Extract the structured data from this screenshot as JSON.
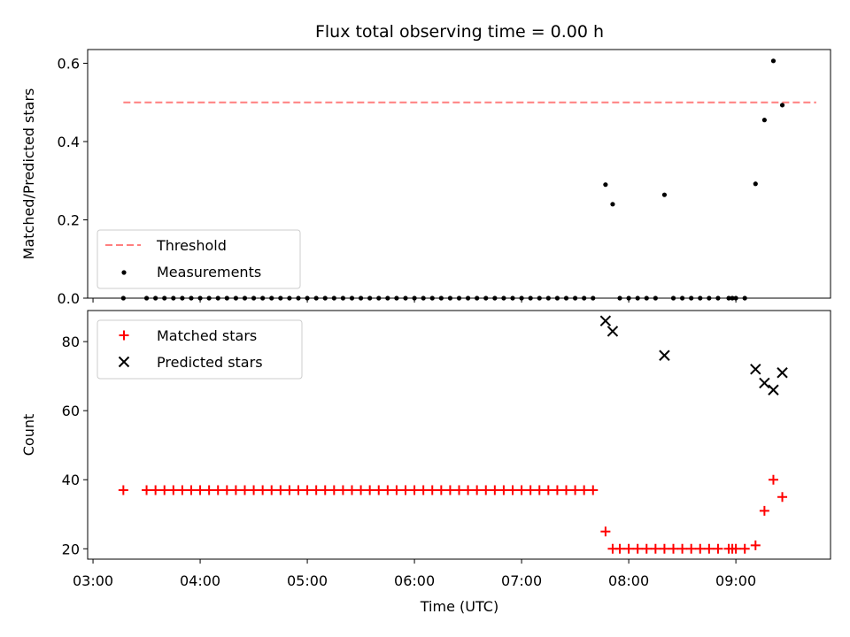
{
  "chart_data": {
    "type": "scatter",
    "title": "Flux total observing time = 0.00 h",
    "xlabel": "Time (UTC)",
    "x_ticks": [
      "03:00",
      "04:00",
      "05:00",
      "06:00",
      "07:00",
      "08:00",
      "09:00"
    ],
    "xlim": [
      "02:57",
      "09:53"
    ],
    "panels": [
      {
        "ylabel": "Matched/Predicted stars",
        "ylim": [
          0,
          0.635
        ],
        "y_ticks": [
          "0.0",
          "0.2",
          "0.4",
          "0.6"
        ],
        "legend": "lower-left",
        "series": [
          {
            "name": "Threshold",
            "style": "dashed-line",
            "color": "#ff7f7f",
            "points": [
              [
                "03:17",
                0.5
              ],
              [
                "09:45",
                0.5
              ]
            ]
          },
          {
            "name": "Measurements",
            "style": "dot",
            "color": "#000000",
            "points": [
              [
                "03:17",
                0
              ],
              [
                "03:30",
                0
              ],
              [
                "03:35",
                0
              ],
              [
                "03:40",
                0
              ],
              [
                "03:45",
                0
              ],
              [
                "03:50",
                0
              ],
              [
                "03:55",
                0
              ],
              [
                "04:00",
                0
              ],
              [
                "04:05",
                0
              ],
              [
                "04:10",
                0
              ],
              [
                "04:15",
                0
              ],
              [
                "04:20",
                0
              ],
              [
                "04:25",
                0
              ],
              [
                "04:30",
                0
              ],
              [
                "04:35",
                0
              ],
              [
                "04:40",
                0
              ],
              [
                "04:45",
                0
              ],
              [
                "04:50",
                0
              ],
              [
                "04:55",
                0
              ],
              [
                "05:00",
                0
              ],
              [
                "05:05",
                0
              ],
              [
                "05:10",
                0
              ],
              [
                "05:15",
                0
              ],
              [
                "05:20",
                0
              ],
              [
                "05:25",
                0
              ],
              [
                "05:30",
                0
              ],
              [
                "05:35",
                0
              ],
              [
                "05:40",
                0
              ],
              [
                "05:45",
                0
              ],
              [
                "05:50",
                0
              ],
              [
                "05:55",
                0
              ],
              [
                "06:00",
                0
              ],
              [
                "06:05",
                0
              ],
              [
                "06:10",
                0
              ],
              [
                "06:15",
                0
              ],
              [
                "06:20",
                0
              ],
              [
                "06:25",
                0
              ],
              [
                "06:30",
                0
              ],
              [
                "06:35",
                0
              ],
              [
                "06:40",
                0
              ],
              [
                "06:45",
                0
              ],
              [
                "06:50",
                0
              ],
              [
                "06:55",
                0
              ],
              [
                "07:00",
                0
              ],
              [
                "07:05",
                0
              ],
              [
                "07:10",
                0
              ],
              [
                "07:15",
                0
              ],
              [
                "07:20",
                0
              ],
              [
                "07:25",
                0
              ],
              [
                "07:30",
                0
              ],
              [
                "07:35",
                0
              ],
              [
                "07:40",
                0
              ],
              [
                "07:47",
                0.29
              ],
              [
                "07:51",
                0.24
              ],
              [
                "07:55",
                0
              ],
              [
                "08:00",
                0
              ],
              [
                "08:05",
                0
              ],
              [
                "08:10",
                0
              ],
              [
                "08:15",
                0
              ],
              [
                "08:20",
                0.264
              ],
              [
                "08:25",
                0
              ],
              [
                "08:30",
                0
              ],
              [
                "08:35",
                0
              ],
              [
                "08:40",
                0
              ],
              [
                "08:45",
                0
              ],
              [
                "08:50",
                0
              ],
              [
                "08:56",
                0
              ],
              [
                "08:58",
                0
              ],
              [
                "09:00",
                0
              ],
              [
                "09:05",
                0
              ],
              [
                "09:11",
                0.292
              ],
              [
                "09:16",
                0.455
              ],
              [
                "09:21",
                0.606
              ],
              [
                "09:26",
                0.493
              ]
            ]
          }
        ]
      },
      {
        "ylabel": "Count",
        "ylim": [
          17,
          89
        ],
        "y_ticks": [
          "20",
          "40",
          "60",
          "80"
        ],
        "legend": "top-left",
        "series": [
          {
            "name": "Matched stars",
            "style": "plus",
            "color": "#ff0000",
            "points": [
              [
                "03:17",
                37
              ],
              [
                "03:30",
                37
              ],
              [
                "03:35",
                37
              ],
              [
                "03:40",
                37
              ],
              [
                "03:45",
                37
              ],
              [
                "03:50",
                37
              ],
              [
                "03:55",
                37
              ],
              [
                "04:00",
                37
              ],
              [
                "04:05",
                37
              ],
              [
                "04:10",
                37
              ],
              [
                "04:15",
                37
              ],
              [
                "04:20",
                37
              ],
              [
                "04:25",
                37
              ],
              [
                "04:30",
                37
              ],
              [
                "04:35",
                37
              ],
              [
                "04:40",
                37
              ],
              [
                "04:45",
                37
              ],
              [
                "04:50",
                37
              ],
              [
                "04:55",
                37
              ],
              [
                "05:00",
                37
              ],
              [
                "05:05",
                37
              ],
              [
                "05:10",
                37
              ],
              [
                "05:15",
                37
              ],
              [
                "05:20",
                37
              ],
              [
                "05:25",
                37
              ],
              [
                "05:30",
                37
              ],
              [
                "05:35",
                37
              ],
              [
                "05:40",
                37
              ],
              [
                "05:45",
                37
              ],
              [
                "05:50",
                37
              ],
              [
                "05:55",
                37
              ],
              [
                "06:00",
                37
              ],
              [
                "06:05",
                37
              ],
              [
                "06:10",
                37
              ],
              [
                "06:15",
                37
              ],
              [
                "06:20",
                37
              ],
              [
                "06:25",
                37
              ],
              [
                "06:30",
                37
              ],
              [
                "06:35",
                37
              ],
              [
                "06:40",
                37
              ],
              [
                "06:45",
                37
              ],
              [
                "06:50",
                37
              ],
              [
                "06:55",
                37
              ],
              [
                "07:00",
                37
              ],
              [
                "07:05",
                37
              ],
              [
                "07:10",
                37
              ],
              [
                "07:15",
                37
              ],
              [
                "07:20",
                37
              ],
              [
                "07:25",
                37
              ],
              [
                "07:30",
                37
              ],
              [
                "07:35",
                37
              ],
              [
                "07:40",
                37
              ],
              [
                "07:47",
                25
              ],
              [
                "07:51",
                20
              ],
              [
                "07:55",
                20
              ],
              [
                "08:00",
                20
              ],
              [
                "08:05",
                20
              ],
              [
                "08:10",
                20
              ],
              [
                "08:15",
                20
              ],
              [
                "08:20",
                20
              ],
              [
                "08:25",
                20
              ],
              [
                "08:30",
                20
              ],
              [
                "08:35",
                20
              ],
              [
                "08:40",
                20
              ],
              [
                "08:45",
                20
              ],
              [
                "08:50",
                20
              ],
              [
                "08:56",
                20
              ],
              [
                "08:58",
                20
              ],
              [
                "09:00",
                20
              ],
              [
                "09:05",
                20
              ],
              [
                "09:11",
                21
              ],
              [
                "09:16",
                31
              ],
              [
                "09:21",
                40
              ],
              [
                "09:26",
                35
              ]
            ]
          },
          {
            "name": "Predicted stars",
            "style": "x",
            "color": "#000000",
            "points": [
              [
                "07:47",
                86
              ],
              [
                "07:51",
                83
              ],
              [
                "08:20",
                76
              ],
              [
                "09:11",
                72
              ],
              [
                "09:16",
                68
              ],
              [
                "09:21",
                66
              ],
              [
                "09:26",
                71
              ]
            ]
          }
        ]
      }
    ]
  }
}
